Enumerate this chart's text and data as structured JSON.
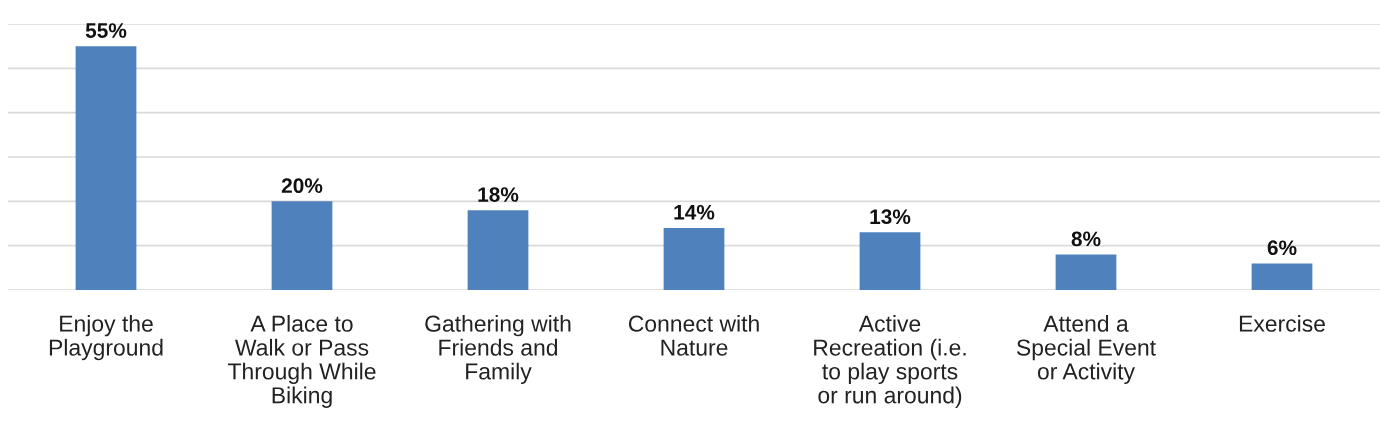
{
  "chart_data": {
    "type": "bar",
    "categories": [
      "Enjoy the\nPlayground",
      "A Place to\nWalk or Pass\nThrough While\nBiking",
      "Gathering with\nFriends and\nFamily",
      "Connect with\nNature",
      "Active\nRecreation (i.e.\nto play sports\nor run around)",
      "Attend a\nSpecial Event\nor Activity",
      "Exercise"
    ],
    "values": [
      55,
      20,
      18,
      14,
      13,
      8,
      6
    ],
    "value_labels": [
      "55%",
      "20%",
      "18%",
      "14%",
      "13%",
      "8%",
      "6%"
    ],
    "color": "#4f81bd",
    "ylim": [
      0,
      60
    ],
    "yticks": [
      {
        "value": 0,
        "label": null
      },
      {
        "value": 10,
        "label": null
      },
      {
        "value": 20,
        "label": null
      },
      {
        "value": 30,
        "label": null
      },
      {
        "value": 40,
        "label": null
      },
      {
        "value": 50,
        "label": null
      },
      {
        "value": 60,
        "label": null
      }
    ],
    "grid": "y",
    "tick_labels": "x",
    "legend": false
  }
}
